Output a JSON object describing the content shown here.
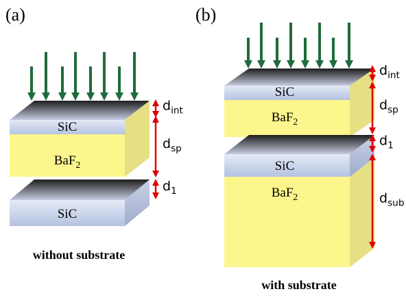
{
  "panels": [
    {
      "label": "(a)",
      "caption": "without substrate",
      "layers": [
        {
          "base": "SiC"
        },
        {
          "base": "BaF",
          "sub": "2"
        },
        {
          "base": "SiC"
        }
      ],
      "dims": [
        {
          "base": "d",
          "sub": "int"
        },
        {
          "base": "d",
          "sub": "sp"
        },
        {
          "base": "d",
          "sub": "1"
        }
      ]
    },
    {
      "label": "(b)",
      "caption": "with substrate",
      "layers": [
        {
          "base": "SiC"
        },
        {
          "base": "BaF",
          "sub": "2"
        },
        {
          "base": "SiC"
        },
        {
          "base": "BaF",
          "sub": "2"
        }
      ],
      "dims": [
        {
          "base": "d",
          "sub": "int"
        },
        {
          "base": "d",
          "sub": "sp"
        },
        {
          "base": "d",
          "sub": "1"
        },
        {
          "base": "d",
          "sub": "sub"
        }
      ]
    }
  ]
}
